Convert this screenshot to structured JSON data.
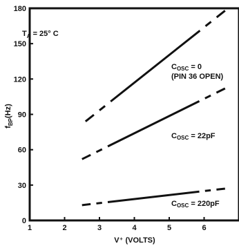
{
  "chart_data": {
    "type": "line",
    "title": "",
    "xlabel": "V⁺ (VOLTS)",
    "ylabel": "fBP(Hz)",
    "ylabel_main": "f",
    "ylabel_sub": "BP",
    "ylabel_tail": "(Hz)",
    "xlim": [
      1,
      7
    ],
    "ylim": [
      0,
      180
    ],
    "x_ticks": [
      1,
      2,
      3,
      4,
      5,
      6
    ],
    "y_ticks": [
      0,
      30,
      60,
      90,
      120,
      150,
      180
    ],
    "grid": false,
    "annotation": {
      "main": "T",
      "sub": "A",
      "tail": " = 25° C"
    },
    "series": [
      {
        "label_main": "C",
        "label_sub": "OSC",
        "label_tail": " = 0",
        "label_line2": "(PIN 36 OPEN)",
        "x": [
          2.6,
          6.6
        ],
        "y": [
          84,
          178
        ],
        "dashed_ends": true
      },
      {
        "label_main": "C",
        "label_sub": "OSC",
        "label_tail": " = 22pF",
        "label_line2": "",
        "x": [
          2.5,
          6.6
        ],
        "y": [
          52,
          112
        ],
        "dashed_ends": true
      },
      {
        "label_main": "C",
        "label_sub": "OSC",
        "label_tail": " = 220pF",
        "label_line2": "",
        "x": [
          2.5,
          6.6
        ],
        "y": [
          13,
          27
        ],
        "dashed_ends": true
      }
    ]
  }
}
